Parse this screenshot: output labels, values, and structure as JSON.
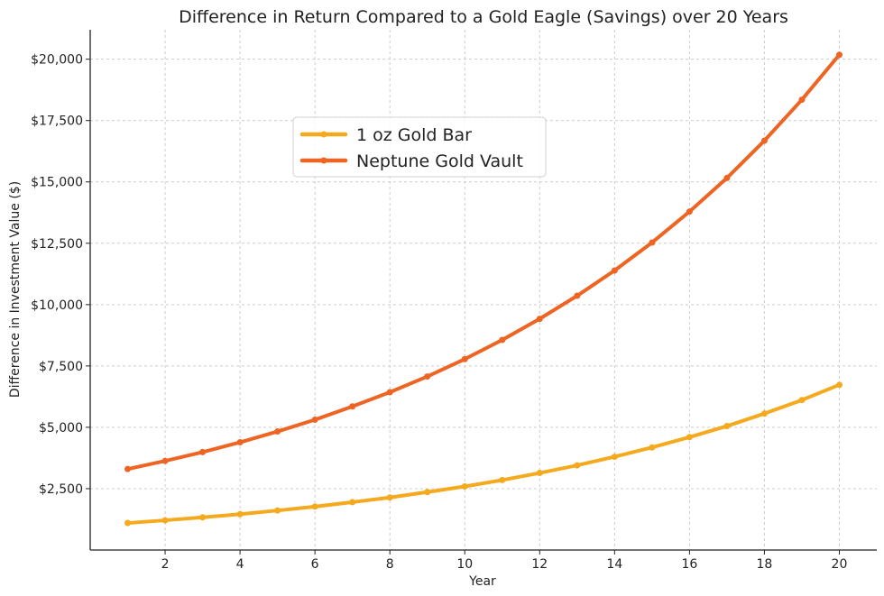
{
  "chart_data": {
    "type": "line",
    "title": "Difference in Return Compared to a Gold Eagle (Savings) over 20 Years",
    "xlabel": "Year",
    "ylabel": "Difference in Investment Value ($)",
    "x": [
      1,
      2,
      3,
      4,
      5,
      6,
      7,
      8,
      9,
      10,
      11,
      12,
      13,
      14,
      15,
      16,
      17,
      18,
      19,
      20
    ],
    "xlim": [
      0,
      21
    ],
    "ylim": [
      0,
      21200
    ],
    "xticks": [
      2,
      4,
      6,
      8,
      10,
      12,
      14,
      16,
      18,
      20
    ],
    "yticks": [
      2500,
      5000,
      7500,
      10000,
      12500,
      15000,
      17500,
      20000
    ],
    "ytick_labels": [
      "$2,500",
      "$5,000",
      "$7,500",
      "$10,000",
      "$12,500",
      "$15,000",
      "$17,500",
      "$20,000"
    ],
    "grid": true,
    "legend_position": "upper-center-left",
    "series": [
      {
        "name": "1 oz Gold Bar",
        "color": "#F5A91D",
        "values": [
          1100,
          1210,
          1330,
          1460,
          1610,
          1770,
          1950,
          2140,
          2360,
          2590,
          2850,
          3140,
          3450,
          3800,
          4180,
          4600,
          5050,
          5560,
          6110,
          6730
        ]
      },
      {
        "name": "Neptune Gold Vault",
        "color": "#EE6423",
        "values": [
          3300,
          3630,
          3990,
          4390,
          4830,
          5310,
          5850,
          6430,
          7070,
          7780,
          8560,
          9420,
          10360,
          11390,
          12530,
          13790,
          15160,
          16680,
          18350,
          20180
        ]
      }
    ]
  }
}
